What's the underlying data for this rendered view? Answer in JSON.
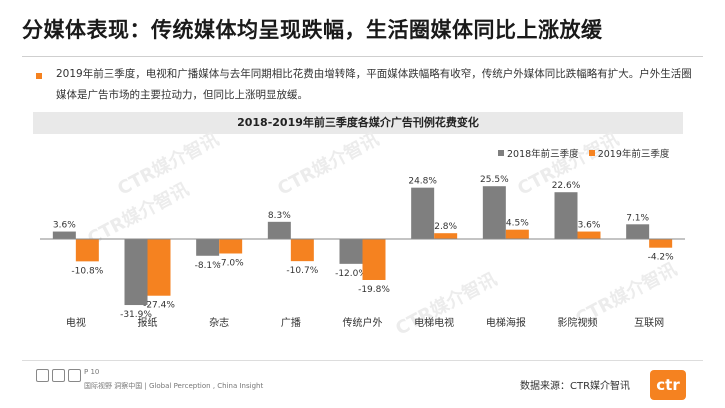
{
  "page": {
    "title": "分媒体表现：传统媒体均呈现跌幅，生活圈媒体同比上涨放缓",
    "paragraph": "2019年前三季度，电视和广播媒体与去年同期相比花费由增转降，平面媒体跌幅略有收窄，传统户外媒体同比跌幅略有扩大。户外生活圈媒体是广告市场的主要拉动力，但同比上涨明显放缓。",
    "watermark": "CTR媒介智讯",
    "page_number": "P 10",
    "footer_text": "国际视野 洞察中国 | Global Perception , China Insight",
    "source": "数据来源：CTR媒介智讯",
    "logo_text": "ctr"
  },
  "colors": {
    "series_2018": "#7f7f7f",
    "series_2019": "#f58220",
    "accent": "#f58220"
  },
  "chart_data": {
    "type": "bar",
    "title": "2018-2019年前三季度各媒介广告刊例花费变化",
    "categories": [
      "电视",
      "报纸",
      "杂志",
      "广播",
      "传统户外",
      "电梯电视",
      "电梯海报",
      "影院视频",
      "互联网"
    ],
    "series": [
      {
        "name": "2018年前三季度",
        "values": [
          3.6,
          -31.9,
          -8.1,
          8.3,
          -12.0,
          24.8,
          25.5,
          22.6,
          7.1
        ]
      },
      {
        "name": "2019年前三季度",
        "values": [
          -10.8,
          -27.4,
          -7.0,
          -10.7,
          -19.8,
          2.8,
          4.5,
          3.6,
          -4.2
        ]
      }
    ],
    "data_labels": [
      [
        "3.6%",
        "-31.9%",
        "-8.1%",
        "8.3%",
        "-12.0%",
        "24.8%",
        "25.5%",
        "22.6%",
        "7.1%"
      ],
      [
        "-10.8%",
        "-27.4%",
        "-7.0%",
        "-10.7%",
        "-19.8%",
        "2.8%",
        "4.5%",
        "3.6%",
        "-4.2%"
      ]
    ],
    "ylim": [
      -35,
      28
    ],
    "grid": false,
    "legend_position": "top-right"
  }
}
